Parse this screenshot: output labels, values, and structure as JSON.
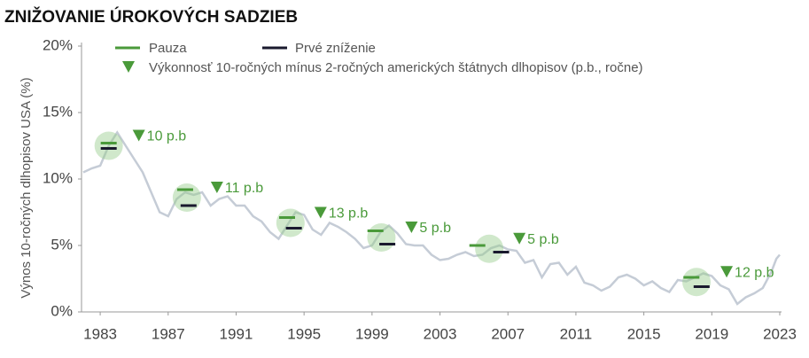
{
  "chart_data": {
    "type": "line",
    "title": "ZNIŽOVANIE ÚROKOVÝCH SADZIEB",
    "ylabel": "Výnos 10-ročných dlhopisov USA (%)",
    "xlim": [
      1981.9,
      2023.0
    ],
    "xticks": [
      1983,
      1987,
      1991,
      1995,
      1999,
      2003,
      2007,
      2011,
      2015,
      2019,
      2023
    ],
    "ylim": [
      0,
      20
    ],
    "yticks": [
      {
        "value": 0,
        "label": "0%"
      },
      {
        "value": 5,
        "label": "5%"
      },
      {
        "value": 10,
        "label": "10%"
      },
      {
        "value": 15,
        "label": "15%"
      },
      {
        "value": 20,
        "label": "20%"
      }
    ],
    "series": [
      {
        "color": "#c5ccd6",
        "x": [
          1982,
          1982.5,
          1983,
          1983.5,
          1984,
          1984.5,
          1985,
          1985.5,
          1986,
          1986.5,
          1987,
          1987.5,
          1988,
          1988.5,
          1989,
          1989.5,
          1990,
          1990.5,
          1991,
          1991.5,
          1992,
          1992.5,
          1993,
          1993.5,
          1994,
          1994.5,
          1995,
          1995.5,
          1996,
          1996.5,
          1997,
          1997.5,
          1998,
          1998.5,
          1999,
          1999.5,
          2000,
          2000.5,
          2001,
          2001.5,
          2002,
          2002.5,
          2003,
          2003.5,
          2004,
          2004.5,
          2005,
          2005.5,
          2006,
          2006.5,
          2007,
          2007.5,
          2008,
          2008.5,
          2009,
          2009.5,
          2010,
          2010.5,
          2011,
          2011.5,
          2012,
          2012.5,
          2013,
          2013.5,
          2014,
          2014.5,
          2015,
          2015.5,
          2016,
          2016.5,
          2017,
          2017.5,
          2018,
          2018.5,
          2019,
          2019.5,
          2020,
          2020.5,
          2021,
          2021.5,
          2022,
          2022.5,
          2022.8,
          2023
        ],
        "values": [
          10.5,
          10.8,
          11.0,
          12.5,
          13.5,
          12.5,
          11.5,
          10.5,
          9.0,
          7.5,
          7.2,
          8.5,
          9.0,
          8.8,
          9.0,
          8.0,
          8.5,
          8.7,
          8.0,
          8.0,
          7.2,
          6.8,
          6.0,
          5.5,
          6.5,
          7.5,
          7.3,
          6.2,
          5.8,
          6.7,
          6.4,
          6.0,
          5.5,
          4.8,
          5.0,
          6.0,
          6.5,
          5.9,
          5.1,
          5.0,
          5.0,
          4.3,
          3.9,
          4.0,
          4.3,
          4.5,
          4.2,
          4.3,
          4.8,
          5.0,
          4.7,
          4.6,
          3.7,
          3.9,
          2.6,
          3.6,
          3.7,
          2.8,
          3.4,
          2.2,
          2.0,
          1.6,
          1.9,
          2.6,
          2.8,
          2.5,
          2.0,
          2.3,
          1.8,
          1.5,
          2.4,
          2.3,
          2.6,
          2.9,
          2.7,
          2.0,
          1.7,
          0.6,
          1.1,
          1.4,
          1.8,
          3.0,
          4.0,
          4.3
        ]
      }
    ],
    "pauses": {
      "name": "Pauza",
      "color": "#4a9a3a",
      "x": [
        1983.5,
        1988.0,
        1994.0,
        1999.2,
        2005.2,
        2017.8
      ],
      "values": [
        12.7,
        9.2,
        7.1,
        6.1,
        5.0,
        2.6
      ]
    },
    "first_cuts": {
      "name": "Prvé zníženie",
      "color": "#1a1a2e",
      "x": [
        1983.5,
        1988.2,
        1994.4,
        1999.9,
        2006.6,
        2018.4
      ],
      "values": [
        12.3,
        8.0,
        6.3,
        5.1,
        4.5,
        1.9
      ]
    },
    "spread": {
      "name": "Výkonnosť 10-ročných mínus 2-ročných amerických štátnych dlhopisov (p.b., ročne)",
      "color": "#4a9a3a",
      "values": [
        10,
        11,
        13,
        5,
        5,
        12
      ],
      "value_labels": [
        "10 p.b",
        "11 p.b",
        "13 p.b",
        "5 p.b",
        "5 p.b",
        "12 p.b"
      ]
    }
  }
}
